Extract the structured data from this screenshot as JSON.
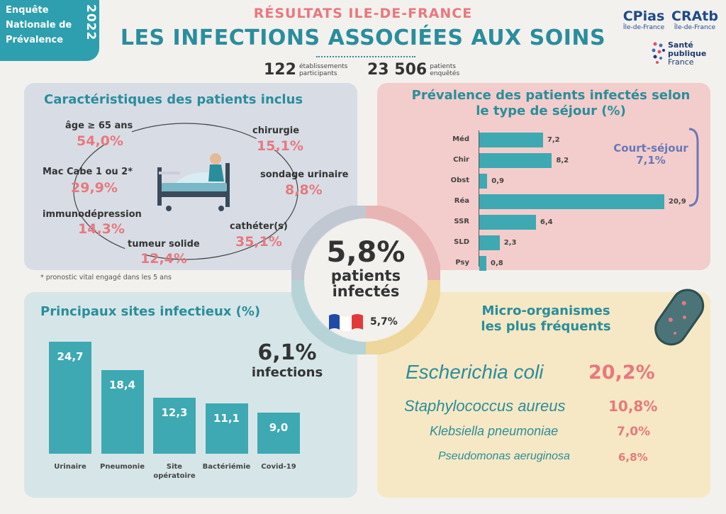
{
  "badge": {
    "line1": "Enquête",
    "line2": "Nationale de",
    "line3": "Prévalence",
    "year": "2022"
  },
  "header": {
    "supertitle": "RÉSULTATS ILE-DE-FRANCE",
    "title": "LES INFECTIONS ASSOCIÉES AUX SOINS",
    "stat1_value": "122",
    "stat1_label_1": "établissements",
    "stat1_label_2": "participants",
    "stat2_value": "23 506",
    "stat2_label_1": "patients",
    "stat2_label_2": "enquêtés"
  },
  "logos": {
    "cpias": "CPias",
    "cpias_sub": "Île-de-France",
    "cratb": "CRAtb",
    "cratb_sub": "Île-de-France",
    "spf1": "Santé",
    "spf2": "publique",
    "spf3": "France"
  },
  "characteristics": {
    "title": "Caractéristiques des patients inclus",
    "items": [
      {
        "label": "âge ≥ 65 ans",
        "value": "54,0%"
      },
      {
        "label": "Mac Cabe 1 ou 2*",
        "value": "29,9%"
      },
      {
        "label": "immunodépression",
        "value": "14,3%"
      },
      {
        "label": "tumeur solide",
        "value": "12,4%"
      },
      {
        "label": "chirurgie",
        "value": "15,1%"
      },
      {
        "label": "sondage urinaire",
        "value": "8,8%"
      },
      {
        "label": "cathéter(s)",
        "value": "35,1%"
      }
    ],
    "footnote": "* pronostic vital engagé dans les 5 ans"
  },
  "center": {
    "value": "5,8%",
    "line1": "patients",
    "line2": "infectés",
    "france_value": "5,7%"
  },
  "colors": {
    "teal": "#2a8d9c",
    "bar": "#3ea9b2",
    "pink": "#e8787e"
  },
  "chart_data": [
    {
      "type": "bar",
      "orientation": "horizontal",
      "title": "Prévalence des patients infectés selon le type de séjour (%)",
      "title_line1": "Prévalence des patients infectés selon",
      "title_line2": "le type de séjour (%)",
      "categories": [
        "Méd",
        "Chir",
        "Obst",
        "Réa",
        "SSR",
        "SLD",
        "Psy"
      ],
      "values": [
        7.2,
        8.2,
        0.9,
        20.9,
        6.4,
        2.3,
        0.8
      ],
      "value_labels": [
        "7,2",
        "8,2",
        "0,9",
        "20,9",
        "6,4",
        "2,3",
        "0,8"
      ],
      "annotation_label": "Court-séjour",
      "annotation_value": "7,1%"
    },
    {
      "type": "bar",
      "orientation": "vertical",
      "title": "Principaux sites infectieux (%)",
      "categories": [
        "Urinaire",
        "Pneumonie",
        "Site opératoire",
        "Bactériémie",
        "Covid-19"
      ],
      "category_lines": [
        [
          "Urinaire"
        ],
        [
          "Pneumonie"
        ],
        [
          "Site",
          "opératoire"
        ],
        [
          "Bactériémie"
        ],
        [
          "Covid-19"
        ]
      ],
      "values": [
        24.7,
        18.4,
        12.3,
        11.1,
        9.0
      ],
      "value_labels": [
        "24,7",
        "18,4",
        "12,3",
        "11,1",
        "9,0"
      ],
      "annotation_value": "6,1%",
      "annotation_label": "infections"
    }
  ],
  "micro": {
    "title1": "Micro-organismes",
    "title2": "les plus fréquents",
    "items": [
      {
        "name": "Escherichia coli",
        "value": "20,2%"
      },
      {
        "name": "Staphylococcus aureus",
        "value": "10,8%"
      },
      {
        "name": "Klebsiella pneumoniae",
        "value": "7,0%"
      },
      {
        "name": "Pseudomonas aeruginosa",
        "value": "6,8%"
      }
    ]
  }
}
